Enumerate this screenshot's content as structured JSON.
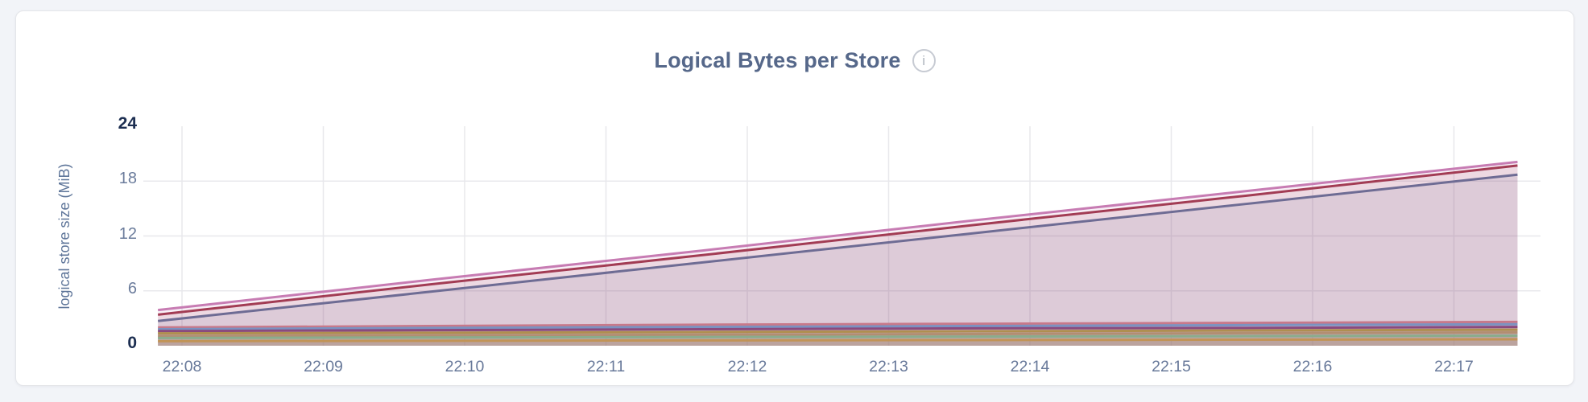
{
  "page": {
    "background": "#F2F4F8"
  },
  "card": {
    "background": "#FFFFFF",
    "border_color": "#E4E5E9"
  },
  "header": {
    "title": "Logical Bytes per Store",
    "info_icon_glyph": "i"
  },
  "colors": {
    "title": "#56688A",
    "tick": "#68799A",
    "tick_bold": "#1C2E51",
    "grid": "#E8E8EC",
    "axis_label": "#5E7599"
  },
  "chart_data": {
    "type": "area",
    "title": "Logical Bytes per Store",
    "xlabel": "",
    "ylabel": "logical store size (MiB)",
    "x_ticks": [
      "22:08",
      "22:09",
      "22:10",
      "22:11",
      "22:12",
      "22:13",
      "22:14",
      "22:15",
      "22:16",
      "22:17"
    ],
    "x_tick_minutes": [
      8,
      9,
      10,
      11,
      12,
      13,
      14,
      15,
      16,
      17
    ],
    "x_sample_minutes": [
      7.83,
      9.754,
      11.678,
      13.602,
      15.526,
      17.45
    ],
    "y_ticks": [
      0,
      6,
      12,
      18,
      24
    ],
    "y_bold_ticks": [
      0,
      24
    ],
    "ylim": [
      0,
      24
    ],
    "grid": true,
    "legend_position": "none",
    "fill_opacity": 0.12,
    "series": [
      {
        "id": "series-1",
        "color": "#C77CB3",
        "values": [
          3.9,
          7.2,
          10.4,
          13.7,
          16.9,
          20.1
        ]
      },
      {
        "id": "series-2",
        "color": "#A23C54",
        "values": [
          3.4,
          6.7,
          9.9,
          13.2,
          16.4,
          19.7
        ]
      },
      {
        "id": "series-3",
        "color": "#6E6C94",
        "values": [
          2.7,
          5.9,
          9.1,
          12.3,
          15.5,
          18.7
        ]
      },
      {
        "id": "series-4",
        "color": "#C8798A",
        "values": [
          2.0,
          2.15,
          2.3,
          2.4,
          2.5,
          2.6
        ]
      },
      {
        "id": "series-5",
        "color": "#7B92C1",
        "values": [
          1.8,
          1.95,
          2.05,
          2.15,
          2.25,
          2.35
        ]
      },
      {
        "id": "series-6",
        "color": "#8A4A7E",
        "values": [
          1.6,
          1.7,
          1.8,
          1.9,
          1.95,
          2.05
        ]
      },
      {
        "id": "series-7",
        "color": "#AF8F50",
        "values": [
          1.35,
          1.42,
          1.5,
          1.58,
          1.67,
          1.75
        ]
      },
      {
        "id": "series-8",
        "color": "#B28E72",
        "values": [
          1.05,
          1.13,
          1.2,
          1.28,
          1.37,
          1.45
        ]
      },
      {
        "id": "series-9",
        "color": "#8AAC8C",
        "values": [
          0.85,
          0.9,
          0.95,
          1.0,
          1.05,
          1.1
        ]
      },
      {
        "id": "series-10",
        "color": "#C29457",
        "values": [
          0.5,
          0.54,
          0.58,
          0.62,
          0.66,
          0.7
        ]
      }
    ]
  }
}
